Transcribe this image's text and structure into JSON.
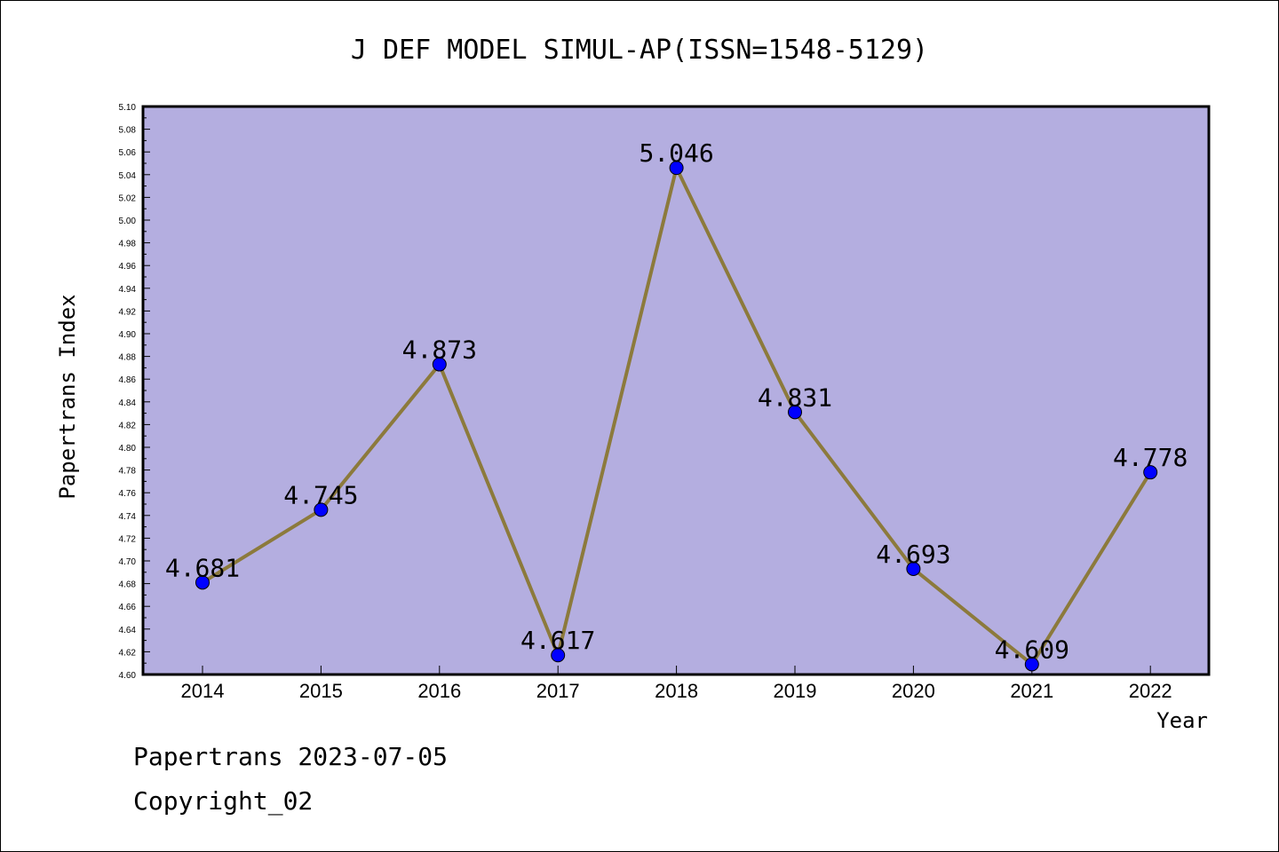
{
  "chart_data": {
    "type": "line",
    "title": "J DEF MODEL SIMUL-AP(ISSN=1548-5129)",
    "xlabel": "Year",
    "ylabel": "Papertrans Index",
    "categories": [
      "2014",
      "2015",
      "2016",
      "2017",
      "2018",
      "2019",
      "2020",
      "2021",
      "2022"
    ],
    "series": [
      {
        "values": [
          4.681,
          4.745,
          4.873,
          4.617,
          5.046,
          4.831,
          4.693,
          4.609,
          4.778
        ],
        "labels": [
          "4.681",
          "4.745",
          "4.873",
          "4.617",
          "5.046",
          "4.831",
          "4.693",
          "4.609",
          "4.778"
        ]
      }
    ],
    "ylim": [
      4.6,
      5.1
    ],
    "yticks": [
      "4.60",
      "4.62",
      "4.64",
      "4.66",
      "4.68",
      "4.70",
      "4.72",
      "4.74",
      "4.76",
      "4.78",
      "4.80",
      "4.82",
      "4.84",
      "4.86",
      "4.88",
      "4.90",
      "4.92",
      "4.94",
      "4.96",
      "4.98",
      "5.00",
      "5.02",
      "5.04",
      "5.06",
      "5.08",
      "5.10"
    ],
    "grid": false,
    "legend": "none",
    "colors": {
      "plot_background": "#b4aee0",
      "line": "#8c7a3c",
      "marker": "#0000ff"
    }
  },
  "footer": {
    "line1": "Papertrans 2023-07-05",
    "line2": "Copyright_02"
  }
}
